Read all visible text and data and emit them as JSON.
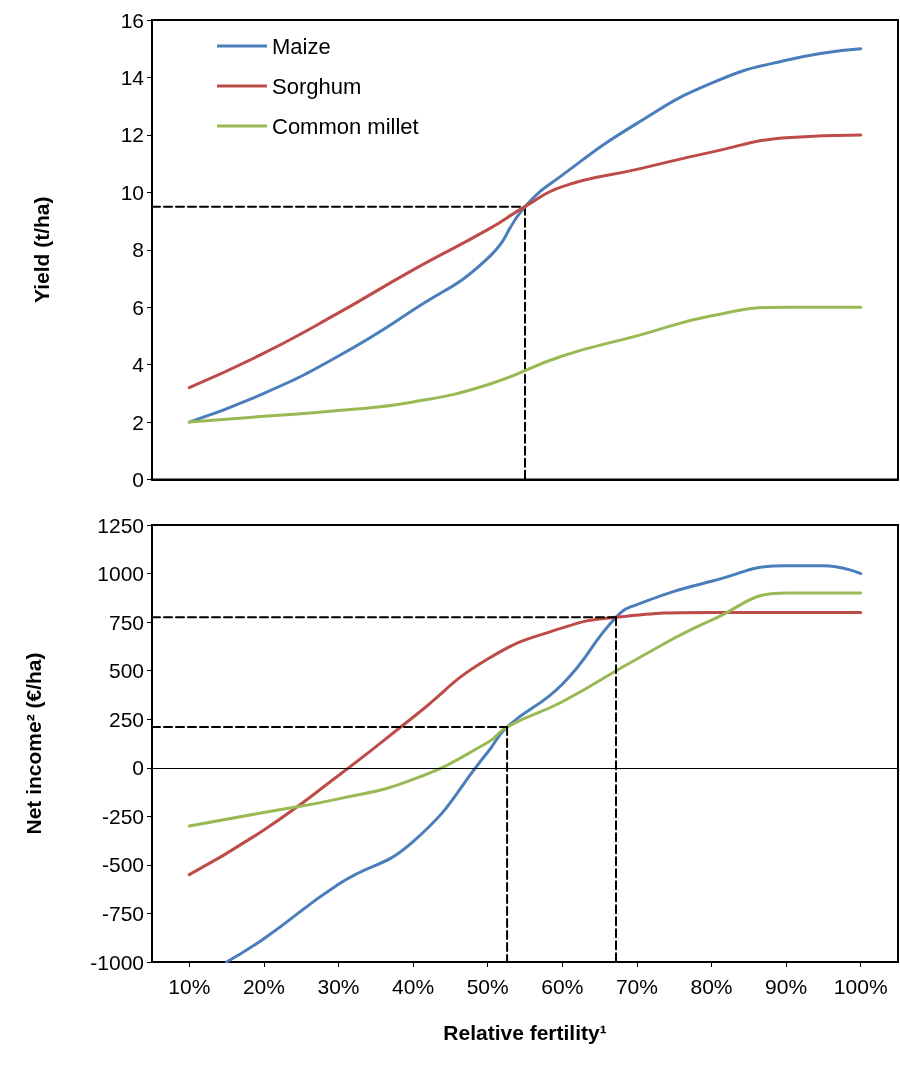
{
  "chart_data": [
    {
      "type": "line",
      "ylabel": "Yield (t/ha)",
      "xlim": [
        5,
        105
      ],
      "ylim": [
        0,
        16
      ],
      "yticks": [
        0,
        2,
        4,
        6,
        8,
        10,
        12,
        14,
        16
      ],
      "tick_labels": "y",
      "legend": "top left",
      "grid": false,
      "marker": "none",
      "line_style": "solid",
      "series": [
        {
          "name": "Maize",
          "color": "#4a7ebb",
          "x": [
            10,
            20,
            30,
            40,
            50,
            55,
            60,
            70,
            80,
            90,
            100
          ],
          "values": [
            2,
            3.0,
            4.3,
            5.9,
            7.7,
            9.5,
            10.6,
            12.4,
            13.8,
            14.6,
            15
          ]
        },
        {
          "name": "Sorghum",
          "color": "#be4b48",
          "x": [
            10,
            20,
            30,
            40,
            50,
            55,
            60,
            70,
            80,
            90,
            100
          ],
          "values": [
            3.2,
            4.4,
            5.8,
            7.3,
            8.7,
            9.5,
            10.2,
            10.8,
            11.4,
            11.9,
            12
          ]
        },
        {
          "name": "Common millet",
          "color": "#98b954",
          "x": [
            10,
            20,
            30,
            40,
            50,
            60,
            70,
            80,
            90,
            100
          ],
          "values": [
            2,
            2.2,
            2.4,
            2.7,
            3.3,
            4.3,
            5,
            5.7,
            6,
            6
          ]
        },
        {
          "color": "#000000",
          "line_style": "dashed",
          "x": [
            5,
            55
          ],
          "values": [
            9.5,
            9.5
          ]
        },
        {
          "color": "#000000",
          "line_style": "dashed",
          "x": [
            55,
            55
          ],
          "values": [
            9.5,
            0
          ]
        }
      ]
    },
    {
      "type": "line",
      "xlabel": "Relative fertility¹",
      "ylabel": "Net income² (€/ha)",
      "xlim": [
        5,
        105
      ],
      "xticks": [
        {
          "value": 10,
          "label": "10%"
        },
        {
          "value": 20,
          "label": "20%"
        },
        {
          "value": 30,
          "label": "30%"
        },
        {
          "value": 40,
          "label": "40%"
        },
        {
          "value": 50,
          "label": "50%"
        },
        {
          "value": 60,
          "label": "60%"
        },
        {
          "value": 70,
          "label": "70%"
        },
        {
          "value": 80,
          "label": "80%"
        },
        {
          "value": 90,
          "label": "90%"
        },
        {
          "value": 100,
          "label": "100%"
        }
      ],
      "ylim": [
        -1000,
        1250
      ],
      "yticks": [
        -1000,
        -750,
        -500,
        -250,
        0,
        250,
        500,
        750,
        1000,
        1250
      ],
      "grid": false,
      "marker": "none",
      "line_style": "solid",
      "ref_lines": [
        {
          "axis": "y",
          "value": 0,
          "color": "#000000"
        }
      ],
      "series": [
        {
          "color": "#4a7ebb",
          "x": [
            15,
            20,
            30,
            40,
            50,
            52.6,
            60,
            67.2,
            70,
            80,
            90,
            95,
            100
          ],
          "values": [
            -1000,
            -880,
            -600,
            -380,
            80,
            210,
            430,
            775,
            840,
            960,
            1040,
            1040,
            1000
          ]
        },
        {
          "color": "#be4b48",
          "x": [
            10,
            20,
            30,
            40,
            50,
            60,
            67.2,
            80,
            90,
            100
          ],
          "values": [
            -550,
            -320,
            -40,
            260,
            560,
            720,
            775,
            800,
            800,
            800
          ]
        },
        {
          "color": "#98b954",
          "x": [
            10,
            20,
            30,
            40,
            50,
            52.6,
            60,
            70,
            80,
            90,
            100
          ],
          "values": [
            -300,
            -230,
            -160,
            -60,
            130,
            210,
            340,
            560,
            760,
            900,
            900
          ]
        },
        {
          "color": "#000000",
          "line_style": "dashed",
          "x": [
            5,
            52.6
          ],
          "values": [
            210,
            210
          ]
        },
        {
          "color": "#000000",
          "line_style": "dashed",
          "x": [
            52.6,
            52.6
          ],
          "values": [
            210,
            -1000
          ]
        },
        {
          "color": "#000000",
          "line_style": "dashed",
          "x": [
            5,
            67.2
          ],
          "values": [
            775,
            775
          ]
        },
        {
          "color": "#000000",
          "line_style": "dashed",
          "x": [
            67.2,
            67.2
          ],
          "values": [
            775,
            -1000
          ]
        }
      ]
    }
  ]
}
